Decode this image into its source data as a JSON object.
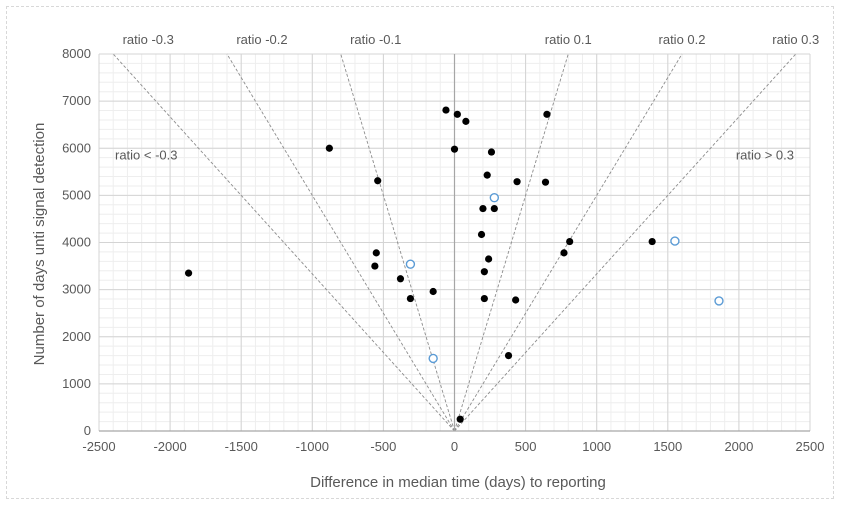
{
  "chart_data": {
    "type": "scatter",
    "xlabel": "Difference in median time (days) to reporting",
    "ylabel": "Number of days unti signal detection",
    "xlim": [
      -2500,
      2500
    ],
    "ylim": [
      0,
      8000
    ],
    "xticks": [
      -2500,
      -2000,
      -1500,
      -1000,
      -500,
      0,
      500,
      1000,
      1500,
      2000,
      2500
    ],
    "yticks": [
      0,
      1000,
      2000,
      3000,
      4000,
      5000,
      6000,
      7000,
      8000
    ],
    "grid": true,
    "ratio_lines": [
      {
        "label": "ratio -0.3",
        "ratio": -0.3
      },
      {
        "label": "ratio -0.2",
        "ratio": -0.2
      },
      {
        "label": "ratio -0.1",
        "ratio": -0.1
      },
      {
        "label": "ratio 0.1",
        "ratio": 0.1
      },
      {
        "label": "ratio 0.2",
        "ratio": 0.2
      },
      {
        "label": "ratio 0.3",
        "ratio": 0.3
      }
    ],
    "region_labels": [
      {
        "text": "ratio < -0.3",
        "side": "left"
      },
      {
        "text": "ratio > 0.3",
        "side": "right"
      }
    ],
    "series": [
      {
        "marker": "filled",
        "color": "#000000",
        "points": [
          [
            -1870,
            3350
          ],
          [
            -880,
            6000
          ],
          [
            -540,
            5310
          ],
          [
            -550,
            3780
          ],
          [
            -560,
            3500
          ],
          [
            -380,
            3230
          ],
          [
            -310,
            2810
          ],
          [
            -150,
            2960
          ],
          [
            -60,
            6810
          ],
          [
            0,
            5980
          ],
          [
            20,
            6720
          ],
          [
            80,
            6570
          ],
          [
            260,
            5920
          ],
          [
            230,
            5430
          ],
          [
            200,
            4720
          ],
          [
            280,
            4720
          ],
          [
            190,
            4170
          ],
          [
            240,
            3650
          ],
          [
            210,
            3380
          ],
          [
            210,
            2810
          ],
          [
            440,
            5290
          ],
          [
            650,
            6720
          ],
          [
            640,
            5280
          ],
          [
            810,
            4020
          ],
          [
            770,
            3780
          ],
          [
            430,
            2780
          ],
          [
            380,
            1600
          ],
          [
            1390,
            4020
          ],
          [
            40,
            250
          ]
        ]
      },
      {
        "marker": "open",
        "color": "#5b9bd5",
        "points": [
          [
            -310,
            3540
          ],
          [
            -150,
            1540
          ],
          [
            280,
            4950
          ],
          [
            1550,
            4030
          ],
          [
            1860,
            2760
          ]
        ]
      }
    ]
  }
}
